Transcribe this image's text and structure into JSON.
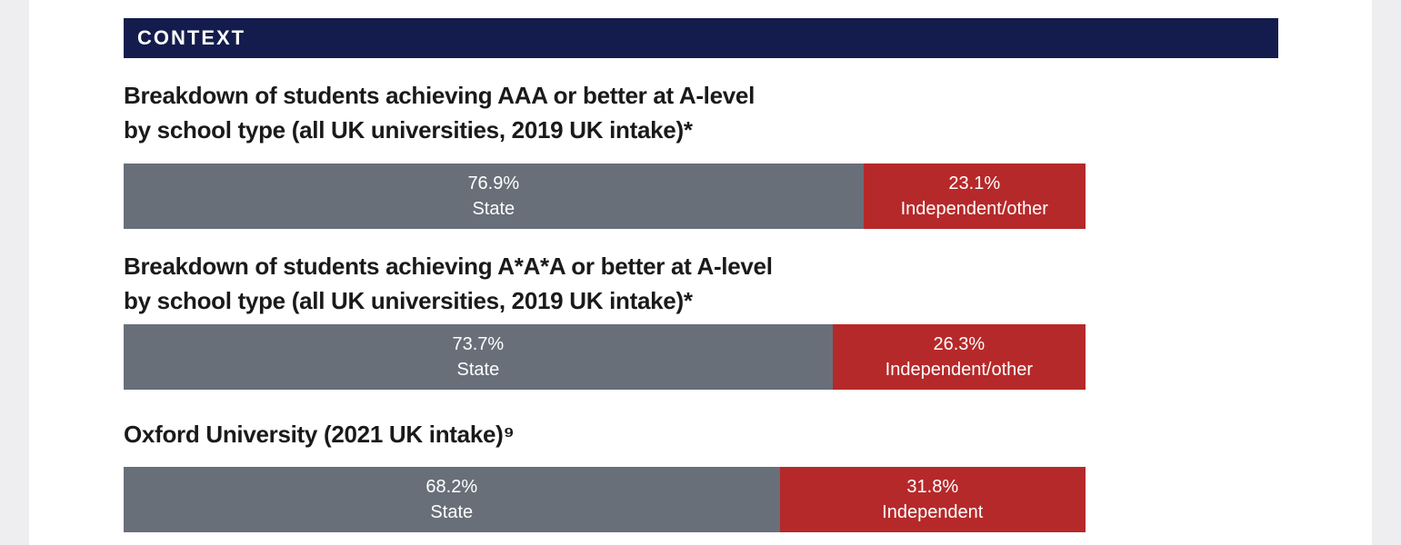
{
  "context": {
    "header": "CONTEXT"
  },
  "colors": {
    "state": "#686f79",
    "independent": "#b6292a",
    "band": "#141c4d"
  },
  "chart_data": [
    {
      "type": "bar",
      "orientation": "horizontal-stacked-100",
      "title_lines": [
        "Breakdown of students achieving AAA or better at A-level",
        "by school type (all UK universities, 2019 UK intake)*"
      ],
      "series": [
        {
          "name": "State",
          "value": 76.9,
          "value_label": "76.9%"
        },
        {
          "name": "Independent/other",
          "value": 23.1,
          "value_label": "23.1%"
        }
      ]
    },
    {
      "type": "bar",
      "orientation": "horizontal-stacked-100",
      "title_lines": [
        "Breakdown of students achieving A*A*A or better at A-level",
        "by school type (all UK universities, 2019 UK intake)*"
      ],
      "series": [
        {
          "name": "State",
          "value": 73.7,
          "value_label": "73.7%"
        },
        {
          "name": "Independent/other",
          "value": 26.3,
          "value_label": "26.3%"
        }
      ]
    },
    {
      "type": "bar",
      "orientation": "horizontal-stacked-100",
      "title_lines": [
        "Oxford University (2021 UK intake)⁹"
      ],
      "series": [
        {
          "name": "State",
          "value": 68.2,
          "value_label": "68.2%"
        },
        {
          "name": "Independent",
          "value": 31.8,
          "value_label": "31.8%"
        }
      ]
    }
  ]
}
